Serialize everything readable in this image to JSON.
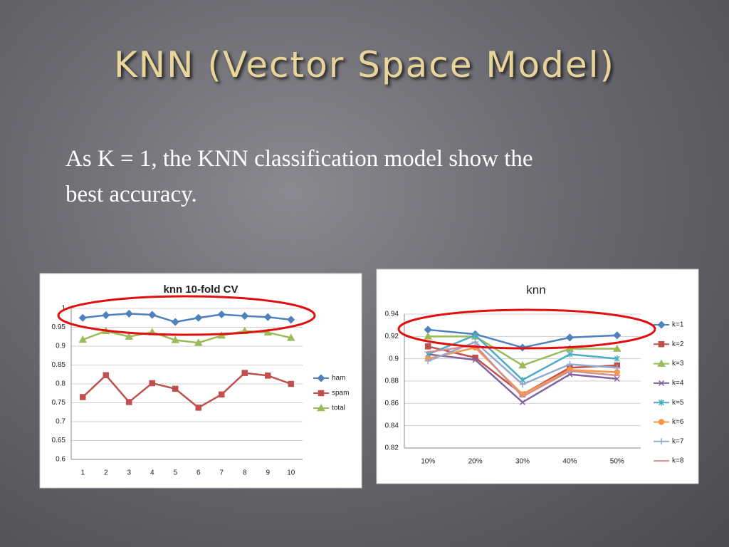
{
  "title": "KNN (Vector Space Model)",
  "text": "As K = 1, the KNN classification model show the best accuracy.",
  "chart_data": [
    {
      "type": "line",
      "title": "knn 10-fold CV",
      "categories": [
        "1",
        "2",
        "3",
        "4",
        "5",
        "6",
        "7",
        "8",
        "9",
        "10"
      ],
      "ylim": [
        0.6,
        1
      ],
      "yticks": [
        0.6,
        0.65,
        0.7,
        0.75,
        0.8,
        0.85,
        0.9,
        0.95,
        1
      ],
      "grid": true,
      "legend": "right",
      "series": [
        {
          "name": "ham",
          "color": "#4f81bd",
          "values": [
            0.975,
            0.982,
            0.986,
            0.983,
            0.964,
            0.975,
            0.984,
            0.98,
            0.977,
            0.97
          ]
        },
        {
          "name": "spam",
          "color": "#c0504d",
          "values": [
            0.765,
            0.823,
            0.752,
            0.802,
            0.787,
            0.737,
            0.772,
            0.829,
            0.822,
            0.8
          ]
        },
        {
          "name": "total",
          "color": "#9bbb59",
          "values": [
            0.917,
            0.94,
            0.925,
            0.937,
            0.916,
            0.909,
            0.928,
            0.94,
            0.936,
            0.922
          ]
        }
      ]
    },
    {
      "type": "line",
      "title": "knn",
      "categories": [
        "10%",
        "20%",
        "30%",
        "40%",
        "50%"
      ],
      "ylim": [
        0.82,
        0.94
      ],
      "yticks": [
        0.82,
        0.84,
        0.86,
        0.88,
        0.9,
        0.92,
        0.94
      ],
      "grid": true,
      "legend": "right",
      "series": [
        {
          "name": "k=1",
          "color": "#4f81bd",
          "values": [
            0.926,
            0.922,
            0.91,
            0.919,
            0.921
          ]
        },
        {
          "name": "k=2",
          "color": "#c0504d",
          "values": [
            0.911,
            0.901,
            0.868,
            0.892,
            0.894
          ]
        },
        {
          "name": "k=3",
          "color": "#9bbb59",
          "values": [
            0.92,
            0.92,
            0.894,
            0.909,
            0.909
          ]
        },
        {
          "name": "k=4",
          "color": "#8064a2",
          "values": [
            0.904,
            0.899,
            0.861,
            0.886,
            0.882
          ]
        },
        {
          "name": "k=5",
          "color": "#4bacc6",
          "values": [
            0.904,
            0.921,
            0.881,
            0.904,
            0.9
          ]
        },
        {
          "name": "k=6",
          "color": "#f79646",
          "values": [
            0.9,
            0.91,
            0.868,
            0.89,
            0.888
          ]
        },
        {
          "name": "k=7",
          "color": "#93a9cf",
          "values": [
            0.898,
            0.915,
            0.877,
            0.895,
            0.892
          ]
        },
        {
          "name": "k=8",
          "color": "#d19392",
          "values": [
            0.906,
            0.912,
            0.866,
            0.889,
            0.885
          ]
        }
      ]
    }
  ]
}
